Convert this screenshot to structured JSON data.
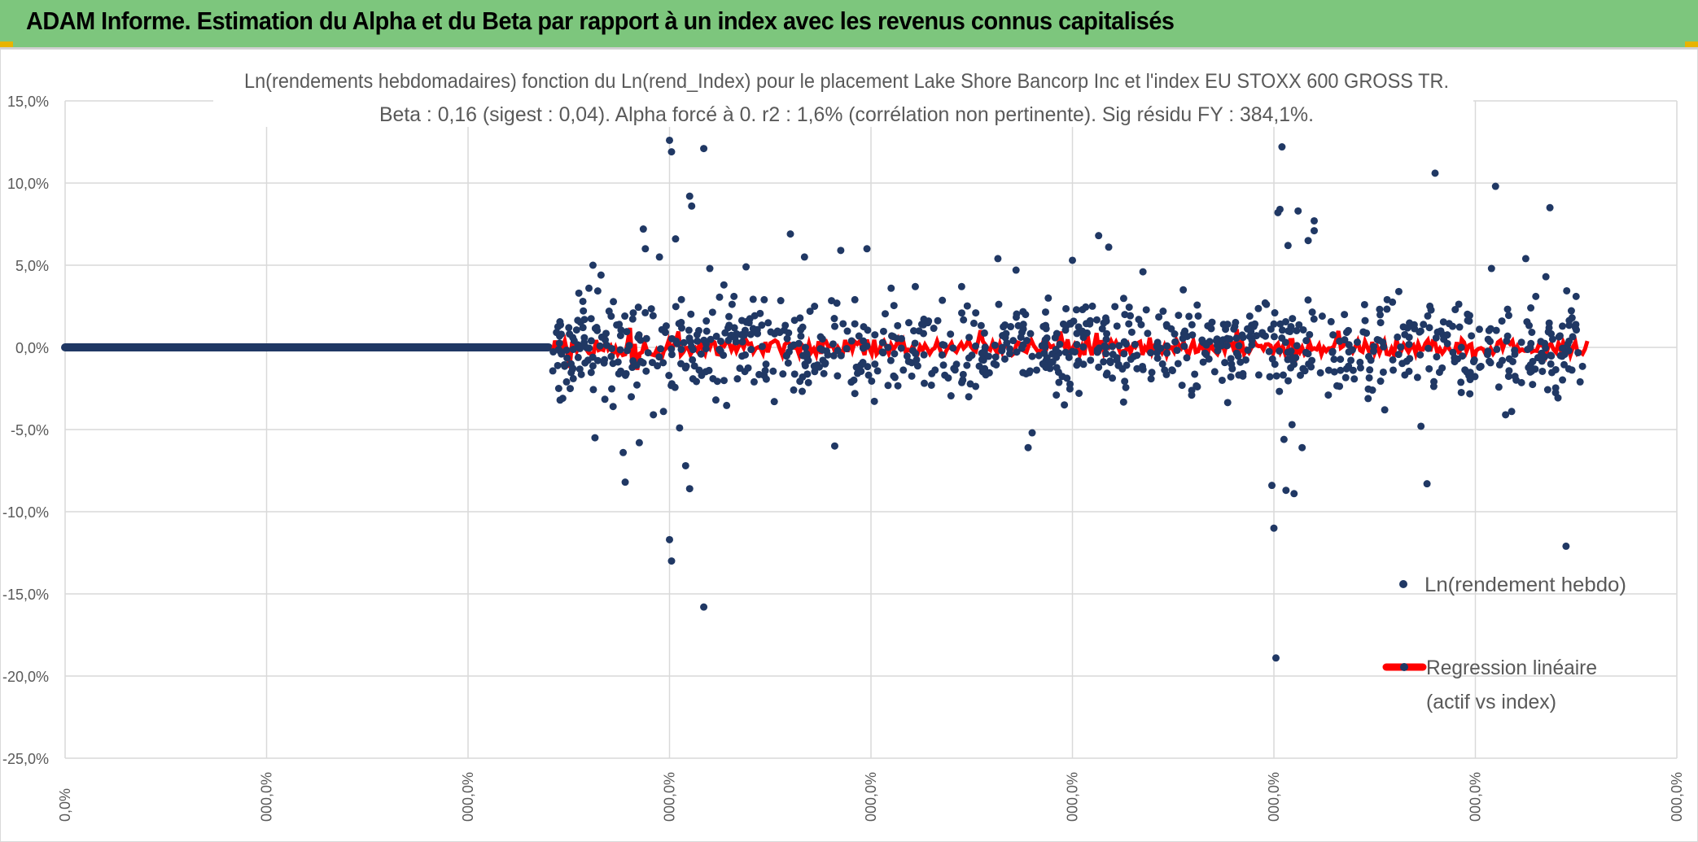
{
  "banner": {
    "title": "ADAM Informe. Estimation du Alpha et du Beta par rapport à un index avec les revenus connus capitalisés"
  },
  "chart_data": {
    "type": "scatter",
    "title": "Ln(rendements hebdomadaires) fonction du Ln(rend_Index) pour le placement Lake Shore Bancorp Inc et l'index EU STOXX 600 GROSS TR.",
    "subtitle": "Beta : 0,16 (sigest : 0,04). Alpha forcé à 0. r2 : 1,6% (corrélation non pertinente). Sig résidu FY : 384,1%.",
    "ylim": [
      -25,
      15
    ],
    "yticks": [
      15,
      10,
      5,
      0,
      -5,
      -10,
      -15,
      -20,
      -25
    ],
    "ytick_labels": [
      "15,0%",
      "10,0%",
      "5,0%",
      "0,0%",
      "-5,0%",
      "-10,0%",
      "-15,0%",
      "-20,0%",
      "-25,0%"
    ],
    "xtick_labels": [
      "0,0%",
      "000,0%",
      "000,0%",
      "000,0%",
      "000,0%",
      "000,0%",
      "000,0%",
      "000,0%",
      "000,0%"
    ],
    "grid": true,
    "legend_position": "right",
    "colors": {
      "series": "#203864",
      "regression": "#ff0000",
      "grid": "#d9d9d9",
      "axis_text": "#595959"
    },
    "series": [
      {
        "name": "Ln(rendement hebdo)",
        "legend_label": "Ln(rendement hebdo)",
        "flat_zero_until_index": 2.4,
        "points": [
          [
            2.45,
            -2.5
          ],
          [
            2.47,
            -3.1
          ],
          [
            2.5,
            1.2
          ],
          [
            2.52,
            0.6
          ],
          [
            2.55,
            3.3
          ],
          [
            2.57,
            2.8
          ],
          [
            2.6,
            3.6
          ],
          [
            2.62,
            5.0
          ],
          [
            2.63,
            -5.5
          ],
          [
            2.66,
            4.4
          ],
          [
            2.7,
            2.2
          ],
          [
            2.72,
            -3.6
          ],
          [
            2.75,
            1.4
          ],
          [
            2.77,
            -6.4
          ],
          [
            2.78,
            -8.2
          ],
          [
            2.82,
            2.1
          ],
          [
            2.85,
            -5.8
          ],
          [
            2.87,
            7.2
          ],
          [
            2.88,
            6.0
          ],
          [
            2.92,
            -4.1
          ],
          [
            2.95,
            5.5
          ],
          [
            2.97,
            -3.9
          ],
          [
            3.0,
            12.6
          ],
          [
            3.01,
            11.9
          ],
          [
            3.0,
            -11.7
          ],
          [
            3.01,
            -13.0
          ],
          [
            3.03,
            6.6
          ],
          [
            3.05,
            -4.9
          ],
          [
            3.08,
            -7.2
          ],
          [
            3.1,
            -8.6
          ],
          [
            3.1,
            9.2
          ],
          [
            3.11,
            8.6
          ],
          [
            3.17,
            12.1
          ],
          [
            3.17,
            -15.8
          ],
          [
            3.2,
            4.8
          ],
          [
            3.23,
            -3.2
          ],
          [
            3.27,
            3.8
          ],
          [
            3.32,
            3.1
          ],
          [
            3.38,
            4.9
          ],
          [
            3.42,
            -2.1
          ],
          [
            3.47,
            2.9
          ],
          [
            3.52,
            -3.3
          ],
          [
            3.6,
            6.9
          ],
          [
            3.67,
            5.5
          ],
          [
            3.72,
            2.5
          ],
          [
            3.82,
            -6.0
          ],
          [
            3.85,
            5.9
          ],
          [
            3.92,
            2.9
          ],
          [
            3.98,
            6.0
          ],
          [
            4.1,
            3.6
          ],
          [
            4.22,
            3.7
          ],
          [
            4.3,
            -2.3
          ],
          [
            4.45,
            3.7
          ],
          [
            4.52,
            2.1
          ],
          [
            4.63,
            5.4
          ],
          [
            4.72,
            4.7
          ],
          [
            4.78,
            -6.1
          ],
          [
            4.8,
            -5.2
          ],
          [
            4.88,
            3.0
          ],
          [
            4.92,
            -2.9
          ],
          [
            4.96,
            -3.5
          ],
          [
            5.0,
            5.3
          ],
          [
            5.05,
            2.3
          ],
          [
            5.13,
            6.8
          ],
          [
            5.18,
            6.1
          ],
          [
            5.26,
            2.0
          ],
          [
            5.35,
            4.6
          ],
          [
            5.45,
            2.2
          ],
          [
            5.55,
            3.5
          ],
          [
            5.62,
            -2.4
          ],
          [
            5.75,
            1.4
          ],
          [
            5.88,
            1.9
          ],
          [
            5.99,
            -8.4
          ],
          [
            6.0,
            -11.0
          ],
          [
            6.01,
            -18.9
          ],
          [
            6.02,
            8.2
          ],
          [
            6.03,
            8.4
          ],
          [
            6.04,
            12.2
          ],
          [
            6.05,
            -5.6
          ],
          [
            6.06,
            -8.7
          ],
          [
            6.07,
            6.2
          ],
          [
            6.09,
            -4.7
          ],
          [
            6.1,
            -8.9
          ],
          [
            6.12,
            8.3
          ],
          [
            6.14,
            -6.1
          ],
          [
            6.17,
            6.5
          ],
          [
            6.2,
            7.7
          ],
          [
            6.2,
            7.1
          ],
          [
            6.24,
            1.9
          ],
          [
            6.27,
            -2.9
          ],
          [
            6.35,
            2.0
          ],
          [
            6.45,
            2.6
          ],
          [
            6.55,
            -3.8
          ],
          [
            6.62,
            3.4
          ],
          [
            6.73,
            -4.8
          ],
          [
            6.76,
            -8.3
          ],
          [
            6.8,
            10.6
          ],
          [
            6.9,
            2.3
          ],
          [
            7.02,
            1.1
          ],
          [
            7.08,
            4.8
          ],
          [
            7.1,
            9.8
          ],
          [
            7.15,
            -4.1
          ],
          [
            7.18,
            -3.9
          ],
          [
            7.25,
            5.4
          ],
          [
            7.3,
            3.1
          ],
          [
            7.35,
            4.3
          ],
          [
            7.37,
            8.5
          ],
          [
            7.45,
            -12.1
          ],
          [
            7.42,
            0.7
          ],
          [
            7.48,
            1.8
          ],
          [
            7.5,
            3.1
          ],
          [
            7.52,
            -2.1
          ]
        ]
      },
      {
        "name": "Regression linéaire",
        "legend_label_line1": "Regression linéaire",
        "legend_label_line2": "(actif vs index)",
        "beta": 0.16
      }
    ]
  }
}
